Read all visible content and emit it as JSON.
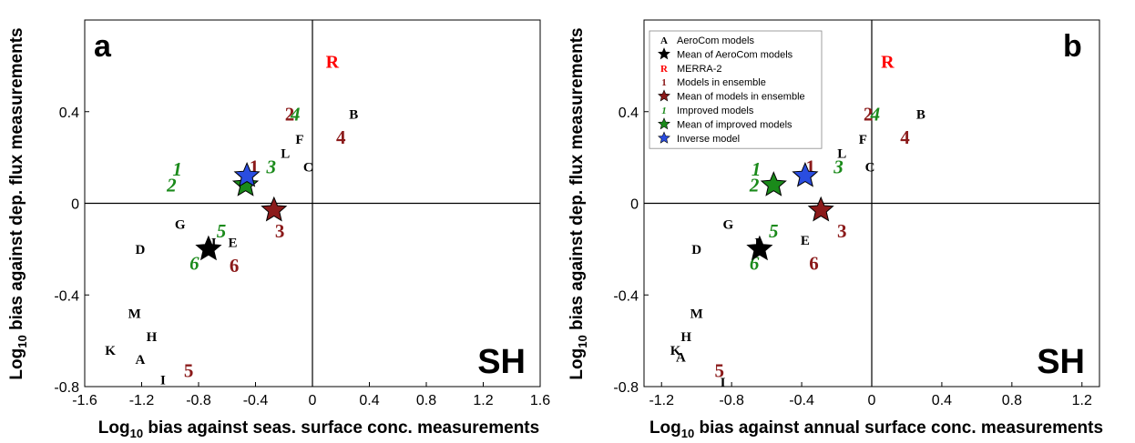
{
  "colors": {
    "aerocom": "#000000",
    "merra": "#ff0000",
    "ensemble": "#8b1a1a",
    "improved": "#1a8a1a",
    "inverse": "#2a4de0"
  },
  "chart_data": [
    {
      "type": "scatter",
      "panel_label": "a",
      "region_label": "SH",
      "xlabel": "Log10 bias against seas. surface conc. measurements",
      "ylabel": "Log10 bias against dep. flux measurements",
      "xlim": [
        -1.6,
        1.6
      ],
      "ylim": [
        -0.8,
        0.8
      ],
      "xticks": [
        "-1.6",
        "-1.2",
        "-0.8",
        "-0.4",
        "0",
        "0.4",
        "0.8",
        "1.2",
        "1.6"
      ],
      "yticks": [
        "-0.8",
        "-0.4",
        "0",
        "0.4"
      ],
      "points": [
        {
          "label": "B",
          "group": "aerocom",
          "x": 0.29,
          "y": 0.39
        },
        {
          "label": "F",
          "group": "aerocom",
          "x": -0.09,
          "y": 0.28
        },
        {
          "label": "L",
          "group": "aerocom",
          "x": -0.19,
          "y": 0.22
        },
        {
          "label": "C",
          "group": "aerocom",
          "x": -0.03,
          "y": 0.16
        },
        {
          "label": "G",
          "group": "aerocom",
          "x": -0.93,
          "y": -0.09
        },
        {
          "label": "D",
          "group": "aerocom",
          "x": -1.21,
          "y": -0.2
        },
        {
          "label": "E",
          "group": "aerocom",
          "x": -0.56,
          "y": -0.17
        },
        {
          "label": "J",
          "group": "aerocom",
          "x": -0.7,
          "y": -0.17
        },
        {
          "label": "M",
          "group": "aerocom",
          "x": -1.25,
          "y": -0.48
        },
        {
          "label": "H",
          "group": "aerocom",
          "x": -1.13,
          "y": -0.58
        },
        {
          "label": "K",
          "group": "aerocom",
          "x": -1.42,
          "y": -0.64
        },
        {
          "label": "A",
          "group": "aerocom",
          "x": -1.21,
          "y": -0.68
        },
        {
          "label": "I",
          "group": "aerocom",
          "x": -1.05,
          "y": -0.77
        },
        {
          "label": "R",
          "group": "merra",
          "x": 0.14,
          "y": 0.62
        },
        {
          "label": "2",
          "group": "ensemble",
          "x": -0.16,
          "y": 0.39
        },
        {
          "label": "4",
          "group": "ensemble",
          "x": 0.2,
          "y": 0.29
        },
        {
          "label": "1",
          "group": "ensemble",
          "x": -0.41,
          "y": 0.16
        },
        {
          "label": "3",
          "group": "ensemble",
          "x": -0.23,
          "y": -0.12
        },
        {
          "label": "6",
          "group": "ensemble",
          "x": -0.55,
          "y": -0.27
        },
        {
          "label": "5",
          "group": "ensemble",
          "x": -0.87,
          "y": -0.73
        },
        {
          "label": "4",
          "group": "improved",
          "x": -0.12,
          "y": 0.39
        },
        {
          "label": "3",
          "group": "improved",
          "x": -0.29,
          "y": 0.16
        },
        {
          "label": "1",
          "group": "improved",
          "x": -0.95,
          "y": 0.15
        },
        {
          "label": "2",
          "group": "improved",
          "x": -0.99,
          "y": 0.08
        },
        {
          "label": "5",
          "group": "improved",
          "x": -0.64,
          "y": -0.12
        },
        {
          "label": "6",
          "group": "improved",
          "x": -0.83,
          "y": -0.26
        }
      ],
      "stars": [
        {
          "group": "aerocom",
          "x": -0.73,
          "y": -0.2
        },
        {
          "group": "ensemble",
          "x": -0.27,
          "y": -0.03
        },
        {
          "group": "improved",
          "x": -0.47,
          "y": 0.08
        },
        {
          "group": "inverse",
          "x": -0.46,
          "y": 0.12
        }
      ]
    },
    {
      "type": "scatter",
      "panel_label": "b",
      "region_label": "SH",
      "xlabel": "Log10 bias against annual surface conc. measurements",
      "ylabel": "Log10 bias against dep. flux measurements",
      "xlim": [
        -1.3,
        1.3
      ],
      "ylim": [
        -0.8,
        0.8
      ],
      "xticks": [
        "-1.2",
        "-0.8",
        "-0.4",
        "0",
        "0.4",
        "0.8",
        "1.2"
      ],
      "yticks": [
        "-0.8",
        "-0.4",
        "0",
        "0.4"
      ],
      "legend": {
        "position": "top-left",
        "entries": [
          {
            "symbol": "A",
            "kind": "letter",
            "group": "aerocom",
            "text": "AeroCom models"
          },
          {
            "symbol": "★",
            "kind": "star",
            "group": "aerocom",
            "text": "Mean of AeroCom models"
          },
          {
            "symbol": "R",
            "kind": "letter",
            "group": "merra",
            "text": "MERRA-2"
          },
          {
            "symbol": "1",
            "kind": "digit",
            "group": "ensemble",
            "text": "Models in ensemble"
          },
          {
            "symbol": "★",
            "kind": "star",
            "group": "ensemble",
            "text": "Mean of models in ensemble"
          },
          {
            "symbol": "1",
            "kind": "italic",
            "group": "improved",
            "text": "Improved models"
          },
          {
            "symbol": "★",
            "kind": "star",
            "group": "improved",
            "text": "Mean of improved models"
          },
          {
            "symbol": "★",
            "kind": "star",
            "group": "inverse",
            "text": "Inverse model"
          }
        ]
      },
      "points": [
        {
          "label": "B",
          "group": "aerocom",
          "x": 0.28,
          "y": 0.39
        },
        {
          "label": "F",
          "group": "aerocom",
          "x": -0.05,
          "y": 0.28
        },
        {
          "label": "L",
          "group": "aerocom",
          "x": -0.17,
          "y": 0.22
        },
        {
          "label": "C",
          "group": "aerocom",
          "x": -0.01,
          "y": 0.16
        },
        {
          "label": "G",
          "group": "aerocom",
          "x": -0.82,
          "y": -0.09
        },
        {
          "label": "D",
          "group": "aerocom",
          "x": -1.0,
          "y": -0.2
        },
        {
          "label": "E",
          "group": "aerocom",
          "x": -0.38,
          "y": -0.16
        },
        {
          "label": "J",
          "group": "aerocom",
          "x": -0.66,
          "y": -0.17
        },
        {
          "label": "M",
          "group": "aerocom",
          "x": -1.0,
          "y": -0.48
        },
        {
          "label": "H",
          "group": "aerocom",
          "x": -1.06,
          "y": -0.58
        },
        {
          "label": "K",
          "group": "aerocom",
          "x": -1.12,
          "y": -0.64
        },
        {
          "label": "A",
          "group": "aerocom",
          "x": -1.09,
          "y": -0.67
        },
        {
          "label": "I",
          "group": "aerocom",
          "x": -0.85,
          "y": -0.78
        },
        {
          "label": "R",
          "group": "merra",
          "x": 0.09,
          "y": 0.62
        },
        {
          "label": "2",
          "group": "ensemble",
          "x": -0.02,
          "y": 0.39
        },
        {
          "label": "4",
          "group": "ensemble",
          "x": 0.19,
          "y": 0.29
        },
        {
          "label": "1",
          "group": "ensemble",
          "x": -0.35,
          "y": 0.16
        },
        {
          "label": "3",
          "group": "ensemble",
          "x": -0.17,
          "y": -0.12
        },
        {
          "label": "6",
          "group": "ensemble",
          "x": -0.33,
          "y": -0.26
        },
        {
          "label": "5",
          "group": "ensemble",
          "x": -0.87,
          "y": -0.73
        },
        {
          "label": "4",
          "group": "improved",
          "x": 0.02,
          "y": 0.39
        },
        {
          "label": "3",
          "group": "improved",
          "x": -0.19,
          "y": 0.16
        },
        {
          "label": "1",
          "group": "improved",
          "x": -0.66,
          "y": 0.15
        },
        {
          "label": "2",
          "group": "improved",
          "x": -0.67,
          "y": 0.08
        },
        {
          "label": "5",
          "group": "improved",
          "x": -0.56,
          "y": -0.12
        },
        {
          "label": "6",
          "group": "improved",
          "x": -0.67,
          "y": -0.26
        }
      ],
      "stars": [
        {
          "group": "aerocom",
          "x": -0.64,
          "y": -0.2
        },
        {
          "group": "ensemble",
          "x": -0.29,
          "y": -0.03
        },
        {
          "group": "improved",
          "x": -0.56,
          "y": 0.08
        },
        {
          "group": "inverse",
          "x": -0.38,
          "y": 0.12
        }
      ]
    }
  ]
}
